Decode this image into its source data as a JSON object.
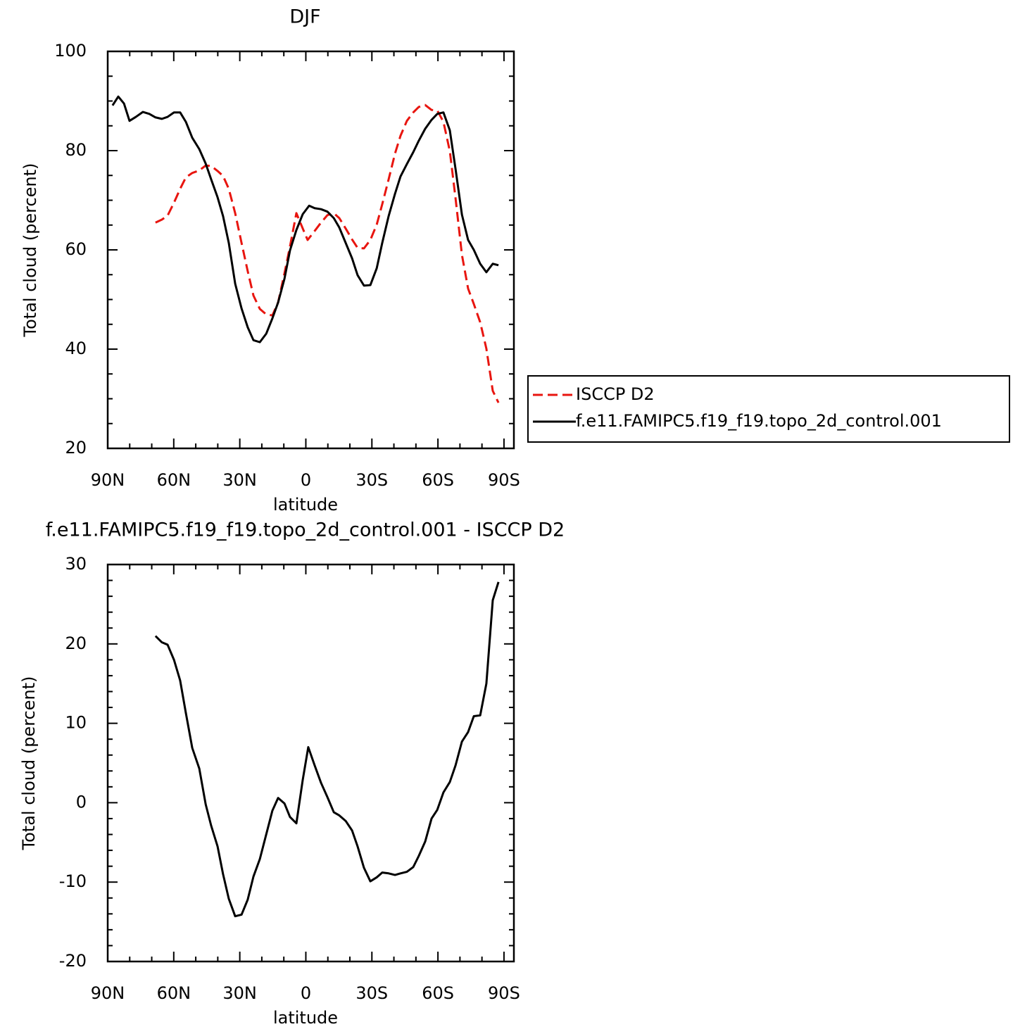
{
  "chart_data": [
    {
      "type": "line",
      "title": "DJF",
      "xlabel": "latitude",
      "ylabel": "Total cloud (percent)",
      "xlim": [
        90,
        -94.5
      ],
      "xticks": [
        {
          "value": 90,
          "label": "90N"
        },
        {
          "value": 60,
          "label": "60N"
        },
        {
          "value": 30,
          "label": "30N"
        },
        0,
        {
          "value": -30,
          "label": "30S"
        },
        {
          "value": -60,
          "label": "60S"
        },
        {
          "value": -90,
          "label": "90S"
        }
      ],
      "xminorticks": [
        80,
        70,
        50,
        40,
        20,
        10,
        -10,
        -20,
        -40,
        -50,
        -70,
        -80
      ],
      "ylim": [
        20,
        100
      ],
      "yticks": [
        20,
        40,
        60,
        80,
        100
      ],
      "yminorticks": [
        25,
        30,
        35,
        45,
        50,
        55,
        65,
        70,
        75,
        85,
        90,
        95
      ],
      "legend": "right",
      "series": [
        {
          "name": "ISCCP D2",
          "color": "#e8150f",
          "dashed": true,
          "x": [
            68.3,
            65.4,
            62.8,
            59.9,
            57.1,
            54.5,
            51.6,
            48.4,
            45.5,
            43.0,
            40.1,
            37.6,
            35.0,
            32.1,
            29.2,
            26.4,
            23.8,
            20.9,
            18.0,
            15.2,
            12.6,
            9.7,
            7.2,
            4.3,
            1.4,
            -0.8,
            -4.0,
            -6.9,
            -9.8,
            -12.7,
            -15.2,
            -18.1,
            -21.0,
            -23.5,
            -26.4,
            -29.3,
            -32.2,
            -34.7,
            -37.6,
            -40.5,
            -43.0,
            -45.9,
            -48.8,
            -51.3,
            -54.2,
            -57.1,
            -59.7,
            -62.5,
            -65.4,
            -68.0,
            -70.9,
            -73.7,
            -76.3,
            -79.2,
            -82.0,
            -84.9,
            -87.5
          ],
          "values": [
            65.5,
            66.1,
            66.9,
            69.5,
            72.3,
            74.6,
            75.5,
            76.0,
            77.0,
            76.9,
            75.9,
            74.9,
            72.3,
            67.4,
            61.4,
            55.7,
            50.8,
            48.1,
            47.0,
            46.8,
            49.4,
            55.3,
            60.7,
            67.4,
            64.3,
            62.0,
            63.8,
            65.5,
            67.0,
            67.4,
            66.4,
            64.3,
            62.1,
            60.4,
            60.3,
            62.0,
            65.1,
            69.2,
            74.2,
            79.4,
            83.0,
            86.0,
            87.7,
            88.8,
            89.2,
            88.2,
            88.1,
            85.8,
            79.9,
            70.4,
            59.0,
            52.2,
            49.1,
            45.4,
            40.1,
            31.6,
            29.2
          ]
        },
        {
          "name": "f.e11.FAMIPC5.f19_f19.topo_2d_control.001",
          "color": "#000000",
          "dashed": false,
          "x": [
            87.8,
            85.2,
            82.6,
            80.1,
            77.2,
            74.0,
            71.1,
            68.3,
            65.4,
            62.8,
            59.9,
            57.1,
            54.5,
            51.6,
            48.4,
            45.5,
            43.0,
            40.1,
            37.6,
            35.0,
            32.1,
            29.2,
            26.4,
            23.8,
            20.9,
            18.0,
            15.2,
            12.6,
            9.7,
            7.2,
            4.3,
            1.4,
            -1.5,
            -4.0,
            -6.9,
            -9.8,
            -12.7,
            -15.2,
            -18.1,
            -21.0,
            -23.5,
            -26.4,
            -29.3,
            -32.2,
            -34.7,
            -37.6,
            -40.5,
            -43.0,
            -45.9,
            -48.8,
            -51.3,
            -54.2,
            -57.1,
            -59.7,
            -62.5,
            -65.4,
            -68.0,
            -70.9,
            -73.7,
            -76.3,
            -79.2,
            -82.0,
            -84.9,
            -87.5
          ],
          "values": [
            89.1,
            90.9,
            89.5,
            86.0,
            86.8,
            87.8,
            87.4,
            86.7,
            86.4,
            86.8,
            87.7,
            87.7,
            85.8,
            82.6,
            80.3,
            77.4,
            74.2,
            70.6,
            66.8,
            61.4,
            53.2,
            48.2,
            44.4,
            41.8,
            41.4,
            43.1,
            46.2,
            49.4,
            54.2,
            59.9,
            64.0,
            67.2,
            68.9,
            68.4,
            68.2,
            67.7,
            66.4,
            64.5,
            61.4,
            58.3,
            54.9,
            52.8,
            52.9,
            56.3,
            61.4,
            66.8,
            71.3,
            74.8,
            77.3,
            79.7,
            82.0,
            84.4,
            86.2,
            87.4,
            87.7,
            84.1,
            76.3,
            67.1,
            62.0,
            60.0,
            57.2,
            55.5,
            57.2,
            56.9
          ]
        }
      ]
    },
    {
      "type": "line",
      "title": "f.e11.FAMIPC5.f19_f19.topo_2d_control.001 - ISCCP D2",
      "xlabel": "latitude",
      "ylabel": "Total cloud (percent)",
      "xlim": [
        90,
        -94.5
      ],
      "xticks": [
        {
          "value": 90,
          "label": "90N"
        },
        {
          "value": 60,
          "label": "60N"
        },
        {
          "value": 30,
          "label": "30N"
        },
        0,
        {
          "value": -30,
          "label": "30S"
        },
        {
          "value": -60,
          "label": "60S"
        },
        {
          "value": -90,
          "label": "90S"
        }
      ],
      "xminorticks": [
        80,
        70,
        50,
        40,
        20,
        10,
        -10,
        -20,
        -40,
        -50,
        -70,
        -80
      ],
      "ylim": [
        -20,
        30
      ],
      "yticks": [
        -20,
        -10,
        0,
        10,
        20,
        30
      ],
      "yminorticks": [
        -18,
        -16,
        -14,
        -12,
        -8,
        -6,
        -4,
        -2,
        2,
        4,
        6,
        8,
        12,
        14,
        16,
        18,
        22,
        24,
        26,
        28
      ],
      "series": [
        {
          "color": "#000000",
          "dashed": false,
          "x": [
            68.3,
            65.4,
            62.8,
            59.9,
            57.1,
            54.5,
            51.6,
            48.4,
            45.5,
            43.0,
            40.1,
            37.6,
            35.0,
            32.1,
            29.2,
            26.4,
            23.8,
            20.9,
            18.0,
            15.2,
            12.6,
            9.7,
            7.2,
            4.3,
            1.4,
            -1.1,
            -4.0,
            -6.9,
            -9.8,
            -12.7,
            -15.2,
            -18.1,
            -21.0,
            -23.5,
            -26.4,
            -29.3,
            -32.2,
            -34.7,
            -37.6,
            -40.5,
            -43.0,
            -45.9,
            -48.8,
            -51.3,
            -54.2,
            -57.1,
            -59.7,
            -62.5,
            -65.4,
            -68.0,
            -70.9,
            -73.7,
            -76.3,
            -79.2,
            -82.0,
            -84.9,
            -87.5
          ],
          "values": [
            21.0,
            20.2,
            19.9,
            18.0,
            15.4,
            11.3,
            6.9,
            4.3,
            -0.2,
            -2.9,
            -5.5,
            -9.0,
            -12.1,
            -14.3,
            -14.1,
            -12.2,
            -9.3,
            -7.1,
            -4.0,
            -1.0,
            0.6,
            -0.1,
            -1.8,
            -2.6,
            2.9,
            7.0,
            4.7,
            2.5,
            0.7,
            -1.2,
            -1.6,
            -2.3,
            -3.5,
            -5.5,
            -8.2,
            -9.9,
            -9.4,
            -8.8,
            -8.9,
            -9.1,
            -8.9,
            -8.7,
            -8.1,
            -6.7,
            -4.9,
            -2.0,
            -0.9,
            1.3,
            2.6,
            4.7,
            7.7,
            8.9,
            10.9,
            11.0,
            15.0,
            25.5,
            27.8
          ]
        }
      ]
    }
  ]
}
